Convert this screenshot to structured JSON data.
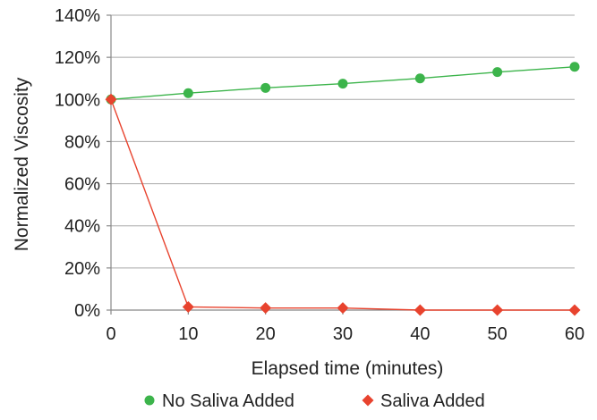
{
  "chart_data": {
    "type": "line",
    "title": "",
    "xlabel": "Elapsed time (minutes)",
    "ylabel": "Normalized Viscosity",
    "x": [
      0,
      10,
      20,
      30,
      40,
      50,
      60
    ],
    "xlim": [
      0,
      60
    ],
    "ylim": [
      0,
      140
    ],
    "x_ticks": [
      "0",
      "10",
      "20",
      "30",
      "40",
      "50",
      "60"
    ],
    "y_ticks": [
      "0%",
      "20%",
      "40%",
      "60%",
      "80%",
      "100%",
      "120%",
      "140%"
    ],
    "grid": "horizontal",
    "legend_position": "bottom",
    "series": [
      {
        "name": "No Saliva Added",
        "values": [
          100,
          103,
          105.5,
          107.5,
          110,
          113,
          115.5
        ],
        "color": "#3cb44b",
        "marker": "circle"
      },
      {
        "name": "Saliva Added",
        "values": [
          100,
          1.5,
          1,
          1,
          0,
          0,
          0
        ],
        "color": "#e8432e",
        "marker": "diamond"
      }
    ]
  }
}
